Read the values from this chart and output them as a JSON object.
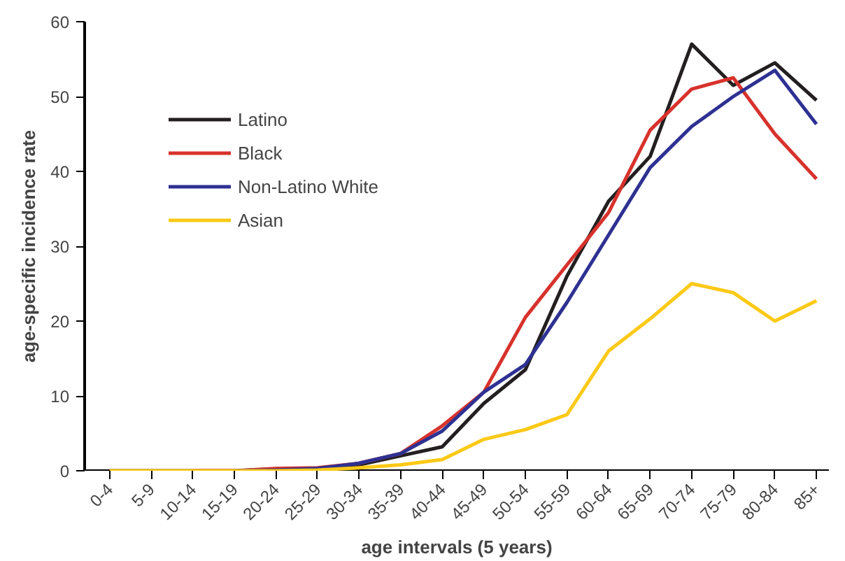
{
  "chart_data": {
    "type": "line",
    "xlabel": "age intervals (5 years)",
    "ylabel": "age-specific incidence rate",
    "categories": [
      "0-4",
      "5-9",
      "10-14",
      "15-19",
      "20-24",
      "25-29",
      "30-34",
      "35-39",
      "40-44",
      "45-49",
      "50-54",
      "55-59",
      "60-64",
      "65-69",
      "70-74",
      "75-79",
      "80-84",
      "85+"
    ],
    "series": [
      {
        "name": "Latino",
        "color": "#231f20",
        "values": [
          0,
          0,
          0,
          0,
          0.2,
          0.3,
          0.8,
          2.0,
          3.2,
          9,
          13.5,
          26,
          36,
          42,
          57,
          51.5,
          54.5,
          49.5
        ]
      },
      {
        "name": "Black",
        "color": "#d7322c",
        "values": [
          null,
          null,
          0,
          0,
          0.3,
          0.4,
          1.0,
          2.3,
          6,
          10.5,
          20.5,
          27.5,
          34.5,
          45.5,
          51,
          52.5,
          45,
          39
        ]
      },
      {
        "name": "Non-Latino White",
        "color": "#2e3192",
        "values": [
          null,
          null,
          null,
          0,
          0.1,
          0.3,
          1.0,
          2.3,
          5.3,
          10.5,
          14.2,
          22.5,
          31.5,
          40.5,
          46,
          50,
          53.5,
          46.3
        ]
      },
      {
        "name": "Asian",
        "color": "#fcc917",
        "values": [
          0,
          0,
          0,
          0,
          0,
          0.1,
          0.4,
          0.8,
          1.5,
          4.2,
          5.5,
          7.5,
          16,
          20.3,
          25,
          23.8,
          20,
          22.7
        ]
      }
    ],
    "ylim": [
      0,
      60
    ],
    "yticks": [
      0,
      10,
      20,
      30,
      40,
      50,
      60
    ],
    "grid": false,
    "legend": "top left",
    "marker": "none",
    "line_style": "solid"
  }
}
